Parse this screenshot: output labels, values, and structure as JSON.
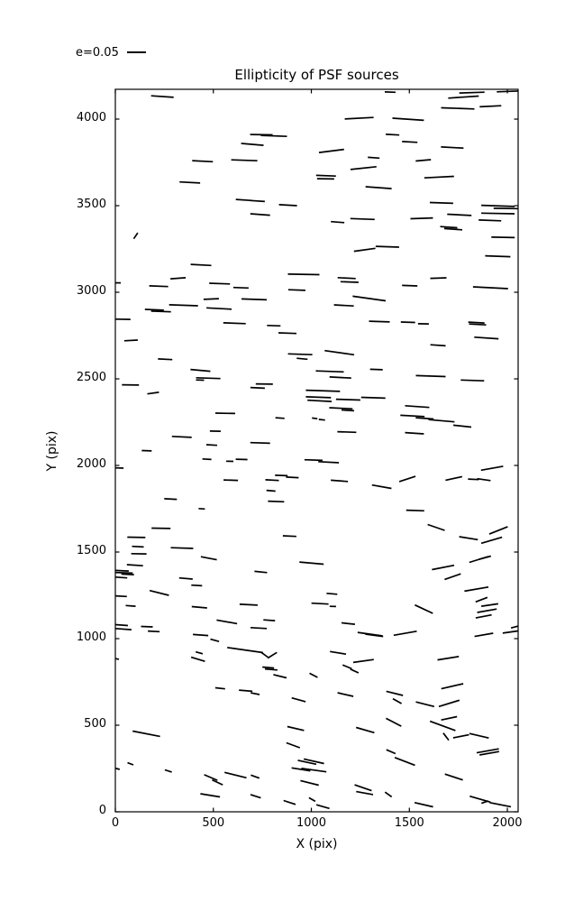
{
  "title": "Ellipticity of PSF sources",
  "legend": {
    "label": "e=0.05"
  },
  "chart_data": {
    "type": "scatter",
    "subtype": "quiver-whisker",
    "title": "Ellipticity of PSF sources",
    "xlabel": "X (pix)",
    "ylabel": "Y (pix)",
    "xlim": [
      0,
      2055
    ],
    "ylim": [
      0,
      4172
    ],
    "xticks": [
      0,
      500,
      1000,
      1500,
      2000
    ],
    "yticks": [
      0,
      500,
      1000,
      1500,
      2000,
      2500,
      3000,
      3500,
      4000
    ],
    "grid": false,
    "legend_label": "e=0.05",
    "legend_position": "upper-left-outside",
    "whisker_scale_note": "headless segments [x_pix, y_pix, angle_deg, length_screen_px]; legend bar length 21px corresponds to e=0.05",
    "segments": [
      [
        240,
        4130,
        -4,
        25
      ],
      [
        445,
        3757,
        -3,
        23
      ],
      [
        658,
        3762,
        -2,
        29
      ],
      [
        380,
        3634,
        -3,
        23
      ],
      [
        104,
        3326,
        56,
        8
      ],
      [
        437,
        3158,
        -3,
        23
      ],
      [
        656,
        3533,
        -4,
        18
      ],
      [
        726,
        3527,
        -4,
        16
      ],
      [
        1244,
        4005,
        3,
        32
      ],
      [
        745,
        3910,
        -1,
        25
      ],
      [
        809,
        3903,
        -2,
        29
      ],
      [
        699,
        3854,
        -5,
        25
      ],
      [
        1103,
        3816,
        7,
        28
      ],
      [
        1318,
        3777,
        -4,
        13
      ],
      [
        1266,
        3717,
        6,
        29
      ],
      [
        1075,
        3673,
        -2,
        22
      ],
      [
        1073,
        3655,
        -1,
        19
      ],
      [
        1343,
        3604,
        -4,
        29
      ],
      [
        881,
        3503,
        -3,
        20
      ],
      [
        739,
        3449,
        -4,
        22
      ],
      [
        1261,
        3423,
        -2,
        27
      ],
      [
        1134,
        3405,
        -4,
        15
      ],
      [
        1272,
        3245,
        8,
        24
      ],
      [
        1402,
        4156,
        -2,
        12
      ],
      [
        1776,
        4127,
        4,
        34
      ],
      [
        1819,
        4153,
        2,
        28
      ],
      [
        2008,
        4160,
        2,
        27
      ],
      [
        1747,
        4062,
        -2,
        37
      ],
      [
        1914,
        4074,
        3,
        24
      ],
      [
        1494,
        3999,
        -4,
        35
      ],
      [
        1414,
        3910,
        -3,
        15
      ],
      [
        1502,
        3868,
        -3,
        17
      ],
      [
        1719,
        3836,
        -3,
        25
      ],
      [
        1571,
        3762,
        5,
        17
      ],
      [
        1652,
        3665,
        3,
        33
      ],
      [
        1664,
        3516,
        -2,
        26
      ],
      [
        1952,
        3499,
        -2,
        37
      ],
      [
        1992,
        3484,
        -1,
        27
      ],
      [
        1952,
        3455,
        -1,
        37
      ],
      [
        1755,
        3447,
        -3,
        27
      ],
      [
        1563,
        3427,
        2,
        25
      ],
      [
        1911,
        3415,
        -2,
        25
      ],
      [
        1701,
        3376,
        -4,
        19
      ],
      [
        1724,
        3364,
        -4,
        20
      ],
      [
        1978,
        3317,
        -1,
        26
      ],
      [
        1388,
        3263,
        -2,
        26
      ],
      [
        1951,
        3208,
        -2,
        28
      ],
      [
        320,
        3081,
        4,
        17
      ],
      [
        221,
        3035,
        -2,
        21
      ],
      [
        532,
        3050,
        -2,
        23
      ],
      [
        641,
        3026,
        -2,
        17
      ],
      [
        9,
        3054,
        0,
        8
      ],
      [
        489,
        2961,
        3,
        17
      ],
      [
        348,
        2925,
        -2,
        32
      ],
      [
        199,
        2899,
        -2,
        21
      ],
      [
        233,
        2889,
        -2,
        22
      ],
      [
        529,
        2906,
        -3,
        28
      ],
      [
        38,
        2844,
        -1,
        17
      ],
      [
        608,
        2821,
        -2,
        25
      ],
      [
        80,
        2722,
        3,
        15
      ],
      [
        254,
        2613,
        -3,
        16
      ],
      [
        434,
        2549,
        -5,
        22
      ],
      [
        474,
        2504,
        -2,
        27
      ],
      [
        432,
        2493,
        -2,
        9
      ],
      [
        77,
        2465,
        -1,
        19
      ],
      [
        193,
        2418,
        8,
        13
      ],
      [
        561,
        2301,
        -1,
        22
      ],
      [
        510,
        2198,
        -1,
        12
      ],
      [
        339,
        2165,
        -3,
        22
      ],
      [
        492,
        2118,
        -3,
        12
      ],
      [
        961,
        3103,
        -1,
        35
      ],
      [
        1180,
        3082,
        -3,
        20
      ],
      [
        1195,
        3059,
        -2,
        20
      ],
      [
        926,
        3013,
        -2,
        19
      ],
      [
        708,
        2959,
        -2,
        28
      ],
      [
        1295,
        2964,
        -8,
        37
      ],
      [
        1166,
        2924,
        -3,
        22
      ],
      [
        1347,
        2831,
        -2,
        23
      ],
      [
        808,
        2807,
        -2,
        15
      ],
      [
        878,
        2764,
        -2,
        20
      ],
      [
        943,
        2642,
        -2,
        27
      ],
      [
        1143,
        2651,
        -8,
        33
      ],
      [
        953,
        2616,
        -5,
        12
      ],
      [
        1094,
        2543,
        -2,
        31
      ],
      [
        1332,
        2554,
        -2,
        14
      ],
      [
        1148,
        2508,
        -3,
        24
      ],
      [
        760,
        2470,
        -1,
        19
      ],
      [
        726,
        2448,
        -3,
        16
      ],
      [
        1059,
        2431,
        -2,
        38
      ],
      [
        1036,
        2394,
        -2,
        28
      ],
      [
        1042,
        2373,
        -3,
        27
      ],
      [
        1188,
        2380,
        -2,
        27
      ],
      [
        1316,
        2391,
        -2,
        27
      ],
      [
        1151,
        2330,
        -3,
        26
      ],
      [
        1186,
        2318,
        -4,
        14
      ],
      [
        840,
        2274,
        -4,
        10
      ],
      [
        1017,
        2272,
        -8,
        6
      ],
      [
        1054,
        2264,
        -6,
        7
      ],
      [
        1181,
        2193,
        -2,
        21
      ],
      [
        739,
        2130,
        -2,
        22
      ],
      [
        1648,
        3082,
        2,
        18
      ],
      [
        1502,
        3038,
        -2,
        17
      ],
      [
        1914,
        3026,
        -3,
        39
      ],
      [
        1493,
        2827,
        -2,
        16
      ],
      [
        1572,
        2818,
        -1,
        12
      ],
      [
        1842,
        2825,
        -3,
        18
      ],
      [
        1848,
        2814,
        -3,
        19
      ],
      [
        1893,
        2736,
        -4,
        27
      ],
      [
        1646,
        2694,
        -4,
        17
      ],
      [
        1609,
        2516,
        -2,
        33
      ],
      [
        1822,
        2491,
        -2,
        26
      ],
      [
        1540,
        2340,
        -4,
        27
      ],
      [
        1516,
        2286,
        -3,
        27
      ],
      [
        1578,
        2272,
        -4,
        20
      ],
      [
        1664,
        2258,
        -5,
        29
      ],
      [
        1770,
        2227,
        -6,
        20
      ],
      [
        1526,
        2186,
        -4,
        21
      ],
      [
        160,
        2085,
        -2,
        11
      ],
      [
        467,
        2036,
        -4,
        10
      ],
      [
        584,
        2024,
        -2,
        8
      ],
      [
        644,
        2035,
        -2,
        13
      ],
      [
        21,
        1985,
        -2,
        9
      ],
      [
        589,
        1915,
        -2,
        16
      ],
      [
        282,
        1806,
        -3,
        14
      ],
      [
        441,
        1750,
        -4,
        7
      ],
      [
        233,
        1637,
        -1,
        21
      ],
      [
        107,
        1585,
        -1,
        20
      ],
      [
        115,
        1531,
        -3,
        13
      ],
      [
        120,
        1490,
        -1,
        17
      ],
      [
        340,
        1523,
        -2,
        25
      ],
      [
        477,
        1464,
        -11,
        18
      ],
      [
        100,
        1424,
        -4,
        18
      ],
      [
        34,
        1392,
        -3,
        15
      ],
      [
        45,
        1380,
        -2,
        19
      ],
      [
        63,
        1371,
        -3,
        14
      ],
      [
        31,
        1353,
        -4,
        13
      ],
      [
        360,
        1347,
        -5,
        15
      ],
      [
        415,
        1307,
        -3,
        12
      ],
      [
        224,
        1264,
        -14,
        22
      ],
      [
        29,
        1245,
        -3,
        13
      ],
      [
        78,
        1189,
        -4,
        11
      ],
      [
        429,
        1181,
        -5,
        17
      ],
      [
        569,
        1097,
        -10,
        23
      ],
      [
        161,
        1069,
        -2,
        13
      ],
      [
        32,
        1078,
        -4,
        14
      ],
      [
        41,
        1055,
        -4,
        18
      ],
      [
        1011,
        2031,
        -2,
        20
      ],
      [
        1088,
        2019,
        -3,
        23
      ],
      [
        847,
        1942,
        -2,
        14
      ],
      [
        903,
        1931,
        -3,
        14
      ],
      [
        800,
        1915,
        -3,
        15
      ],
      [
        1143,
        1911,
        -4,
        19
      ],
      [
        1359,
        1877,
        -10,
        22
      ],
      [
        794,
        1854,
        -5,
        10
      ],
      [
        820,
        1792,
        -2,
        18
      ],
      [
        889,
        1592,
        -3,
        15
      ],
      [
        1001,
        1436,
        -5,
        27
      ],
      [
        742,
        1385,
        -6,
        14
      ],
      [
        1105,
        1259,
        -5,
        12
      ],
      [
        1044,
        1202,
        -3,
        19
      ],
      [
        1110,
        1186,
        -2,
        7
      ],
      [
        680,
        1196,
        -3,
        20
      ],
      [
        785,
        1106,
        -4,
        13
      ],
      [
        1188,
        1087,
        -6,
        15
      ],
      [
        731,
        1061,
        -3,
        18
      ],
      [
        1922,
        1984,
        10,
        25
      ],
      [
        1490,
        1922,
        18,
        19
      ],
      [
        1727,
        1925,
        12,
        19
      ],
      [
        1827,
        1920,
        -3,
        12
      ],
      [
        1880,
        1918,
        -8,
        15
      ],
      [
        1530,
        1740,
        -2,
        20
      ],
      [
        1637,
        1642,
        -19,
        20
      ],
      [
        1955,
        1625,
        22,
        22
      ],
      [
        1802,
        1580,
        -9,
        21
      ],
      [
        1920,
        1568,
        16,
        24
      ],
      [
        1854,
        1457,
        17,
        22
      ],
      [
        1885,
        1467,
        15,
        14
      ],
      [
        1672,
        1411,
        11,
        25
      ],
      [
        1721,
        1358,
        19,
        19
      ],
      [
        1842,
        1286,
        10,
        27
      ],
      [
        1868,
        1225,
        21,
        14
      ],
      [
        1574,
        1170,
        -25,
        22
      ],
      [
        1910,
        1194,
        8,
        19
      ],
      [
        1896,
        1161,
        10,
        22
      ],
      [
        1879,
        1128,
        11,
        18
      ],
      [
        2041,
        1068,
        15,
        10
      ],
      [
        196,
        1042,
        -3,
        13
      ],
      [
        435,
        1021,
        -4,
        17
      ],
      [
        507,
        990,
        -15,
        10
      ],
      [
        662,
        934,
        -8,
        40
      ],
      [
        422,
        881,
        -17,
        16
      ],
      [
        428,
        918,
        -15,
        8
      ],
      [
        7,
        883,
        -10,
        5
      ],
      [
        535,
        713,
        -6,
        11
      ],
      [
        665,
        699,
        -5,
        15
      ],
      [
        158,
        451,
        -11,
        31
      ],
      [
        77,
        277,
        -20,
        7
      ],
      [
        11,
        248,
        -15,
        5
      ],
      [
        270,
        236,
        -17,
        8
      ],
      [
        487,
        198,
        -23,
        16
      ],
      [
        521,
        170,
        -25,
        13
      ],
      [
        613,
        212,
        -14,
        25
      ],
      [
        484,
        95,
        -9,
        22
      ],
      [
        1300,
        1026,
        -8,
        28
      ],
      [
        1321,
        1019,
        -8,
        20
      ],
      [
        762,
        906,
        -36,
        10
      ],
      [
        801,
        904,
        32,
        12
      ],
      [
        780,
        833,
        -5,
        13
      ],
      [
        795,
        822,
        -5,
        14
      ],
      [
        840,
        783,
        -14,
        15
      ],
      [
        1011,
        788,
        -27,
        10
      ],
      [
        1183,
        837,
        -23,
        11
      ],
      [
        1220,
        813,
        -25,
        10
      ],
      [
        1266,
        871,
        8,
        23
      ],
      [
        1136,
        918,
        -9,
        18
      ],
      [
        713,
        682,
        -11,
        10
      ],
      [
        935,
        647,
        -15,
        16
      ],
      [
        1174,
        677,
        -13,
        18
      ],
      [
        920,
        481,
        -13,
        19
      ],
      [
        1275,
        472,
        -16,
        21
      ],
      [
        907,
        384,
        -20,
        16
      ],
      [
        978,
        286,
        -12,
        21
      ],
      [
        1013,
        292,
        -13,
        23
      ],
      [
        947,
        245,
        -9,
        21
      ],
      [
        1013,
        241,
        -8,
        28
      ],
      [
        713,
        203,
        -20,
        10
      ],
      [
        991,
        167,
        -14,
        21
      ],
      [
        1264,
        139,
        -19,
        20
      ],
      [
        1272,
        108,
        -10,
        19
      ],
      [
        716,
        90,
        -18,
        12
      ],
      [
        889,
        54,
        -18,
        14
      ],
      [
        1004,
        71,
        -30,
        8
      ],
      [
        1059,
        30,
        -16,
        15
      ],
      [
        1479,
        1031,
        10,
        26
      ],
      [
        1880,
        1022,
        10,
        21
      ],
      [
        2015,
        1038,
        8,
        17
      ],
      [
        1698,
        887,
        9,
        24
      ],
      [
        1719,
        725,
        13,
        25
      ],
      [
        1425,
        684,
        -14,
        19
      ],
      [
        1438,
        639,
        -29,
        11
      ],
      [
        1580,
        621,
        -14,
        21
      ],
      [
        1703,
        626,
        17,
        24
      ],
      [
        1703,
        540,
        12,
        18
      ],
      [
        1420,
        517,
        -27,
        19
      ],
      [
        1670,
        496,
        -20,
        30
      ],
      [
        1687,
        434,
        -52,
        10
      ],
      [
        1764,
        436,
        11,
        18
      ],
      [
        1856,
        439,
        -13,
        22
      ],
      [
        1900,
        352,
        10,
        25
      ],
      [
        1908,
        338,
        10,
        22
      ],
      [
        1406,
        347,
        -23,
        11
      ],
      [
        1477,
        291,
        -21,
        24
      ],
      [
        1727,
        201,
        -18,
        21
      ],
      [
        1393,
        100,
        -35,
        9
      ],
      [
        1861,
        73,
        -16,
        24
      ],
      [
        1885,
        56,
        20,
        8
      ],
      [
        1964,
        41,
        -11,
        24
      ],
      [
        1574,
        41,
        -13,
        21
      ]
    ]
  }
}
